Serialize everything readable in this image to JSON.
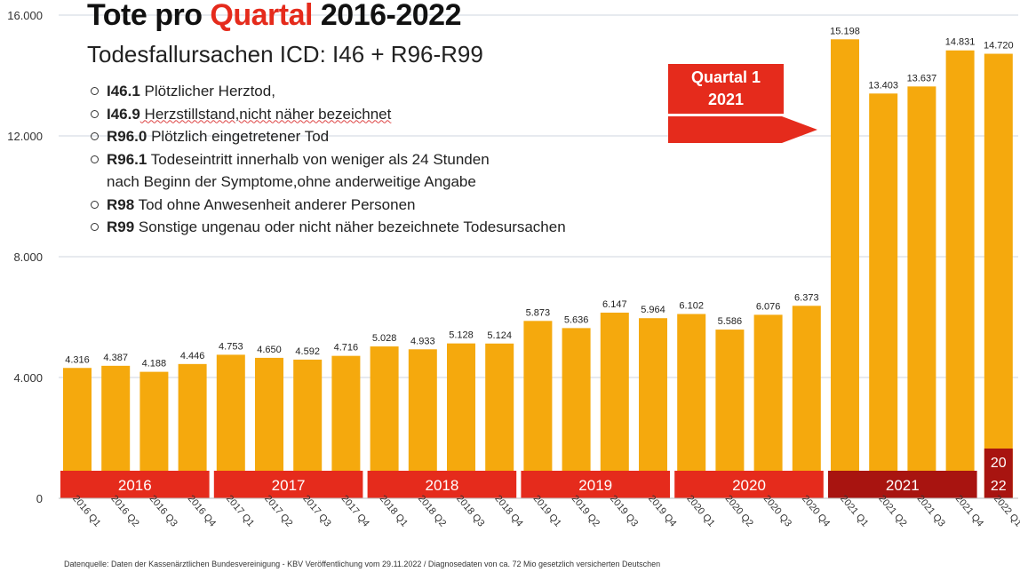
{
  "header": {
    "title_part1": "Tote pro ",
    "title_highlight": "Quartal",
    "title_part2": " 2016-2022",
    "subtitle": "Todesfallursachen ICD: I46 + R96-R99"
  },
  "legend_items": [
    {
      "code": "I46.1",
      "text": " Plötzlicher Herztod,"
    },
    {
      "code": "I46.9",
      "text": " Herzstillstand,nicht näher bezeichnet"
    },
    {
      "code": "R96.0",
      "text": " Plötzlich eingetretener Tod"
    },
    {
      "code": "R96.1",
      "text": " Todeseintritt innerhalb von weniger als 24 Stunden"
    },
    {
      "code": "",
      "text": "nach Beginn der Symptome,ohne anderweitige Angabe"
    },
    {
      "code": "R98",
      "text": " Tod ohne Anwesenheit anderer Personen"
    },
    {
      "code": "R99",
      "text": " Sonstige ungenau oder nicht näher bezeichnete Todesursachen"
    }
  ],
  "callout": {
    "line1": "Quartal 1",
    "line2": "2021"
  },
  "source_note": "Datenquelle: Daten der Kassenärztlichen Bundesvereinigung - KBV Veröffentlichung vom 29.11.2022 / Diagnosedaten von ca. 72 Mio gesetzlich versicherten Deutschen",
  "colors": {
    "bar": "#f5a90d",
    "year_band": "#e52b1c",
    "year_band_2021": "#a81410",
    "title_accent": "#e52b1c",
    "gridline": "#cfd6df"
  },
  "chart_data": {
    "type": "bar",
    "title": "Tote pro Quartal 2016-2022",
    "subtitle": "Todesfallursachen ICD: I46 + R96-R99",
    "categories": [
      "2016 Q1",
      "2016 Q2",
      "2016 Q3",
      "2016 Q4",
      "2017 Q1",
      "2017 Q2",
      "2017 Q3",
      "2017 Q4",
      "2018 Q1",
      "2018 Q2",
      "2018 Q3",
      "2018 Q4",
      "2019 Q1",
      "2019 Q2",
      "2019 Q3",
      "2019 Q4",
      "2020 Q1",
      "2020 Q2",
      "2020 Q3",
      "2020 Q4",
      "2021 Q1",
      "2021 Q2",
      "2021 Q3",
      "2021 Q4",
      "2022 Q1"
    ],
    "values": [
      4316,
      4387,
      4188,
      4446,
      4753,
      4650,
      4592,
      4716,
      5028,
      4933,
      5128,
      5124,
      5873,
      5636,
      6147,
      5964,
      6102,
      5586,
      6076,
      6373,
      15198,
      13403,
      13637,
      14831,
      14720
    ],
    "value_labels": [
      "4.316",
      "4.387",
      "4.188",
      "4.446",
      "4.753",
      "4.650",
      "4.592",
      "4.716",
      "5.028",
      "4.933",
      "5.128",
      "5.124",
      "5.873",
      "5.636",
      "6.147",
      "5.964",
      "6.102",
      "5.586",
      "6.076",
      "6.373",
      "15.198",
      "13.403",
      "13.637",
      "14.831",
      "14.720"
    ],
    "ylim": [
      0,
      16000
    ],
    "yticks": [
      0,
      4000,
      8000,
      12000,
      16000
    ],
    "ytick_labels": [
      "0",
      "4.000",
      "8.000",
      "12.000",
      "16.000"
    ],
    "year_groups": [
      {
        "label": "2016",
        "start": 0,
        "end": 3
      },
      {
        "label": "2017",
        "start": 4,
        "end": 7
      },
      {
        "label": "2018",
        "start": 8,
        "end": 11
      },
      {
        "label": "2019",
        "start": 12,
        "end": 15
      },
      {
        "label": "2020",
        "start": 16,
        "end": 19
      },
      {
        "label": "2021",
        "start": 20,
        "end": 23
      },
      {
        "label_line1": "20",
        "label_line2": "22",
        "start": 24,
        "end": 24
      }
    ],
    "grid": true,
    "legend_position": "top-left"
  }
}
